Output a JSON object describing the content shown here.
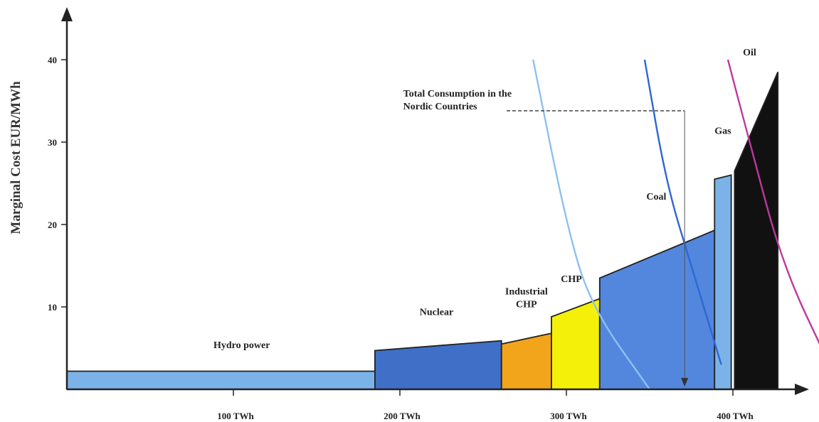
{
  "chart_data": {
    "type": "area",
    "title": "",
    "ylabel": "Marginal Cost EUR/MWh",
    "xlabel": "",
    "xlim": [
      0,
      450
    ],
    "ylim": [
      0,
      45
    ],
    "yticks": [
      10,
      20,
      30,
      40
    ],
    "xticks": [
      {
        "value": 100,
        "label": "100 TWh"
      },
      {
        "value": 200,
        "label": "200 TWh"
      },
      {
        "value": 300,
        "label": "300 TWh"
      },
      {
        "value": 400,
        "label": "400 TWh"
      }
    ],
    "grid": false,
    "blocks": [
      {
        "name": "Hydro power",
        "lines": [
          "Hydro power"
        ],
        "x0": 0,
        "x1": 185,
        "y0": 2.2,
        "y1": 2.2,
        "color": "#7bb3e8",
        "label_x": 105,
        "label_y": 5
      },
      {
        "name": "Nuclear",
        "lines": [
          "Nuclear"
        ],
        "x0": 185,
        "x1": 261,
        "y0": 4.7,
        "y1": 5.9,
        "color": "#3f6fc6",
        "label_x": 222,
        "label_y": 9
      },
      {
        "name": "Industrial CHP",
        "lines": [
          "Industrial",
          "CHP"
        ],
        "x0": 261,
        "x1": 291,
        "y0": 5.5,
        "y1": 6.8,
        "color": "#f2a51a",
        "label_x": 276,
        "label_y": 11.5
      },
      {
        "name": "CHP",
        "lines": [
          "CHP"
        ],
        "x0": 291,
        "x1": 320,
        "y0": 8.8,
        "y1": 11.0,
        "color": "#f5f00a",
        "label_x": 303,
        "label_y": 13
      },
      {
        "name": "Coal",
        "lines": [
          "Coal"
        ],
        "x0": 320,
        "x1": 389,
        "y0": 13.5,
        "y1": 19.3,
        "color": "#5387dd",
        "label_x": 354,
        "label_y": 23
      },
      {
        "name": "Gas",
        "lines": [
          "Gas"
        ],
        "x0": 389,
        "x1": 399,
        "y0": 25.5,
        "y1": 26.0,
        "color": "#7bb3e8",
        "label_x": 394,
        "label_y": 31
      },
      {
        "name": "Oil",
        "lines": [
          "Oil"
        ],
        "x0": 401,
        "x1": 427,
        "y0": 26.5,
        "y1": 38.5,
        "color": "#111111",
        "label_x": 410,
        "label_y": 40.5
      }
    ],
    "demand_curves": [
      {
        "name": "demand-curve-light-blue",
        "color": "#8ec0ef",
        "points": [
          [
            280,
            40
          ],
          [
            300,
            20
          ],
          [
            315,
            10
          ],
          [
            350,
            0
          ]
        ]
      },
      {
        "name": "demand-curve-blue",
        "color": "#2f66d6",
        "points": [
          [
            347,
            40
          ],
          [
            360,
            25
          ],
          [
            375,
            15
          ],
          [
            393,
            3
          ]
        ]
      },
      {
        "name": "demand-curve-magenta",
        "color": "#c0369e",
        "points": [
          [
            397,
            40
          ],
          [
            410,
            30
          ],
          [
            430,
            15
          ],
          [
            458,
            3
          ]
        ]
      }
    ],
    "annotations": [
      {
        "lines": [
          "Total Consumption in the",
          "Nordic Countries"
        ],
        "x": 202,
        "y": 35.5
      }
    ],
    "total_consumption": {
      "x": 371,
      "y": 33.8
    }
  }
}
